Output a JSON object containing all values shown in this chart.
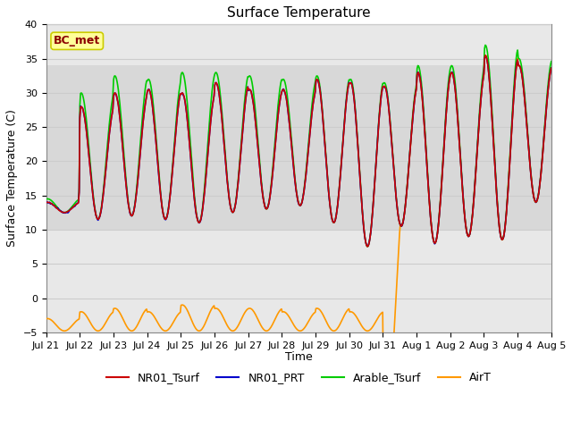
{
  "title": "Surface Temperature",
  "ylabel": "Surface Temperature (C)",
  "xlabel": "Time",
  "ylim": [
    -5,
    40
  ],
  "yticks": [
    -5,
    0,
    5,
    10,
    15,
    20,
    25,
    30,
    35,
    40
  ],
  "xtick_labels": [
    "Jul 21",
    "Jul 22",
    "Jul 23",
    "Jul 24",
    "Jul 25",
    "Jul 26",
    "Jul 27",
    "Jul 28",
    "Jul 29",
    "Jul 30",
    "Jul 31",
    "Aug 1",
    "Aug 2",
    "Aug 3",
    "Aug 4",
    "Aug 5"
  ],
  "legend_labels": [
    "NR01_Tsurf",
    "NR01_PRT",
    "Arable_Tsurf",
    "AirT"
  ],
  "line_colors": {
    "NR01_Tsurf": "#cc0000",
    "NR01_PRT": "#0000cc",
    "Arable_Tsurf": "#00cc00",
    "AirT": "#ff9900"
  },
  "bc_met_label": "BC_met",
  "bc_met_text_color": "#8b0000",
  "bc_met_bg": "#ffff99",
  "bc_met_edge": "#cccc00",
  "shaded_band": [
    10,
    34
  ],
  "shaded_band_color": "#d8d8d8",
  "fig_bg_color": "#ffffff",
  "plot_bg_color": "#ffffff",
  "outer_band_color": "#e8e8e8",
  "grid_color": "#cccccc",
  "title_fontsize": 11,
  "axis_fontsize": 9,
  "tick_fontsize": 8
}
